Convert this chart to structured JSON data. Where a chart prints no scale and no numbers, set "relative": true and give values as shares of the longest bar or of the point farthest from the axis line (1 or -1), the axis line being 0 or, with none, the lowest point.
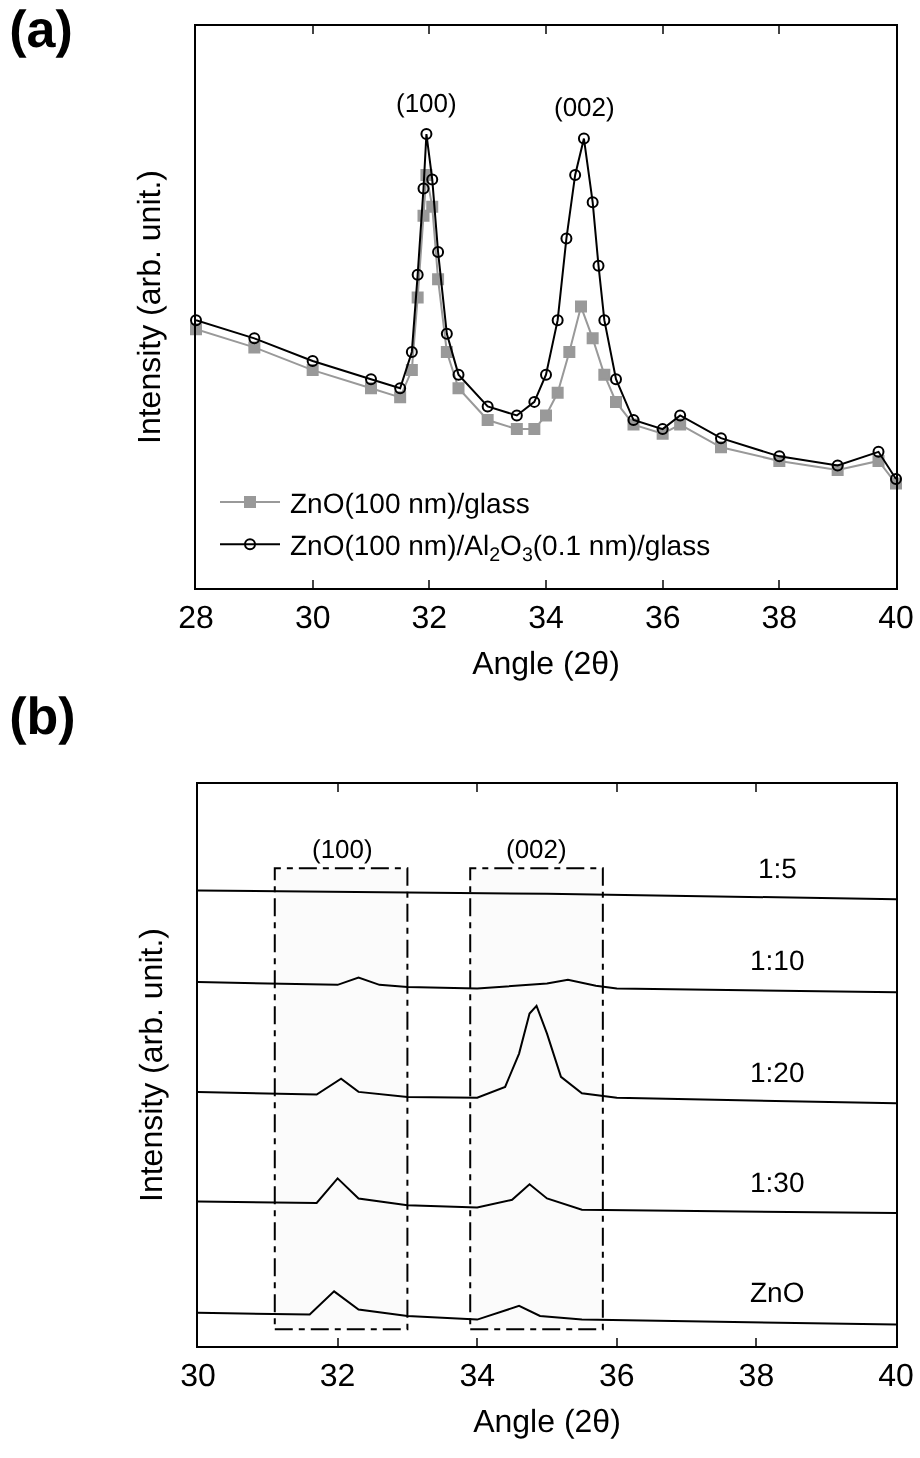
{
  "chart_data": [
    {
      "type": "line",
      "title": "(a)",
      "xlabel": "Angle (2θ)",
      "ylabel": "Intensity (arb. unit.)",
      "relative": true,
      "xlim": [
        28,
        40
      ],
      "xticks": [
        28,
        30,
        32,
        34,
        36,
        38,
        40
      ],
      "legend": "bottom left",
      "grid": false,
      "annotations": [
        {
          "text": "(100)",
          "x": 31.95,
          "y": 1.0
        },
        {
          "text": "(002)",
          "x": 34.65,
          "y": 0.99
        }
      ],
      "series": [
        {
          "name": "ZnO(100 nm)/glass",
          "color": "#999999",
          "marker": "square",
          "x": [
            28,
            29,
            30,
            31,
            31.5,
            31.7,
            31.8,
            31.9,
            31.95,
            32.05,
            32.15,
            32.3,
            32.5,
            33,
            33.5,
            33.8,
            34,
            34.2,
            34.4,
            34.6,
            34.8,
            35,
            35.2,
            35.5,
            36,
            36.3,
            37,
            38,
            39,
            39.7,
            40
          ],
          "values": [
            0.57,
            0.53,
            0.48,
            0.44,
            0.42,
            0.48,
            0.64,
            0.82,
            0.91,
            0.84,
            0.68,
            0.52,
            0.44,
            0.37,
            0.35,
            0.35,
            0.38,
            0.43,
            0.52,
            0.62,
            0.55,
            0.47,
            0.41,
            0.36,
            0.34,
            0.36,
            0.31,
            0.28,
            0.26,
            0.28,
            0.23
          ]
        },
        {
          "name": "ZnO(100 nm)/Al$_{2}$O$_{3}$(0.1 nm)/glass",
          "color": "#000000",
          "marker": "circle",
          "x": [
            28,
            29,
            30,
            31,
            31.5,
            31.7,
            31.8,
            31.9,
            31.95,
            32.05,
            32.15,
            32.3,
            32.5,
            33,
            33.5,
            33.8,
            34,
            34.2,
            34.35,
            34.5,
            34.65,
            34.8,
            34.9,
            35,
            35.2,
            35.5,
            36,
            36.3,
            37,
            38,
            39,
            39.7,
            40
          ],
          "values": [
            0.59,
            0.55,
            0.5,
            0.46,
            0.44,
            0.52,
            0.69,
            0.88,
            1.0,
            0.9,
            0.74,
            0.56,
            0.47,
            0.4,
            0.38,
            0.41,
            0.47,
            0.59,
            0.77,
            0.91,
            0.99,
            0.85,
            0.71,
            0.59,
            0.46,
            0.37,
            0.35,
            0.38,
            0.33,
            0.29,
            0.27,
            0.3,
            0.24
          ]
        }
      ]
    },
    {
      "type": "line",
      "title": "(b)",
      "xlabel": "Angle (2θ)",
      "ylabel": "Intensity (arb. unit.)",
      "relative": true,
      "xlim": [
        30,
        40
      ],
      "xticks": [
        30,
        32,
        34,
        36,
        38,
        40
      ],
      "legend": false,
      "grid": false,
      "bands": [
        {
          "axis": "x",
          "from": 31.1,
          "to": 33.0,
          "label": "(100)"
        },
        {
          "axis": "x",
          "from": 33.9,
          "to": 35.8,
          "label": "(002)"
        }
      ],
      "series": [
        {
          "name": "1:5",
          "color": "#000000",
          "x": [
            30,
            35,
            40
          ],
          "values": [
            1.0,
            0.993,
            0.981
          ]
        },
        {
          "name": "1:10",
          "color": "#000000",
          "x": [
            30,
            32,
            32.3,
            32.6,
            33,
            34,
            35,
            35.3,
            35.7,
            36,
            40
          ],
          "values": [
            0.799,
            0.793,
            0.809,
            0.793,
            0.788,
            0.785,
            0.796,
            0.804,
            0.791,
            0.785,
            0.777
          ]
        },
        {
          "name": "1:20",
          "color": "#000000",
          "x": [
            30,
            31.7,
            32.05,
            32.3,
            33,
            34,
            34.4,
            34.6,
            34.75,
            34.85,
            35,
            35.2,
            35.5,
            36,
            40
          ],
          "values": [
            0.558,
            0.552,
            0.587,
            0.558,
            0.547,
            0.545,
            0.569,
            0.642,
            0.73,
            0.747,
            0.686,
            0.591,
            0.555,
            0.545,
            0.533
          ]
        },
        {
          "name": "1:30",
          "color": "#000000",
          "x": [
            30,
            31.7,
            32,
            32.3,
            33,
            34,
            34.5,
            34.75,
            35,
            35.5,
            40
          ],
          "values": [
            0.317,
            0.314,
            0.368,
            0.324,
            0.309,
            0.304,
            0.321,
            0.355,
            0.324,
            0.299,
            0.292
          ]
        },
        {
          "name": "ZnO",
          "color": "#000000",
          "x": [
            30,
            31.6,
            31.95,
            32.3,
            33,
            34,
            34.6,
            34.9,
            35.5,
            40
          ],
          "values": [
            0.073,
            0.069,
            0.12,
            0.08,
            0.066,
            0.058,
            0.088,
            0.066,
            0.058,
            0.047
          ]
        }
      ]
    }
  ]
}
